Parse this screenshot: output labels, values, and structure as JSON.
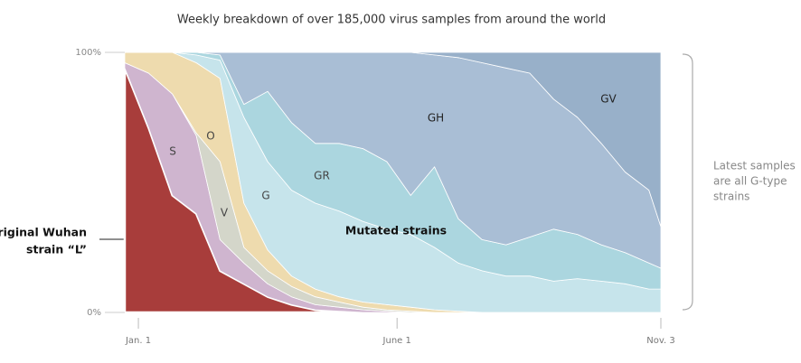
{
  "chart_data": {
    "type": "stacked-area",
    "title": "Weekly breakdown of over 185,000 virus samples from around the world",
    "x": [
      -8,
      6,
      20,
      34,
      48,
      62,
      76,
      90,
      104,
      118,
      132,
      146,
      160,
      174,
      188,
      202,
      216,
      230,
      244,
      258,
      272,
      286,
      300,
      307
    ],
    "xlim": [
      -8,
      307
    ],
    "xticks": [
      {
        "value": 0,
        "label": "Jan. 1"
      },
      {
        "value": 152,
        "label": "June 1"
      },
      {
        "value": 307,
        "label": "Nov. 3"
      }
    ],
    "ylim": [
      0,
      100
    ],
    "yticks": [
      {
        "value": 0,
        "label": "0%"
      },
      {
        "value": 100,
        "label": "100%"
      }
    ],
    "series": [
      {
        "color": "#a83d3b",
        "values": [
          94,
          71,
          45,
          38,
          16,
          11,
          6,
          3,
          1,
          0.5,
          0,
          0,
          0,
          0,
          0,
          0,
          0,
          0,
          0,
          0,
          0,
          0,
          0,
          0
        ]
      },
      {
        "name": "S",
        "color": "#cfb5cf",
        "values": [
          2,
          21,
          39,
          30,
          12,
          8,
          5,
          3,
          2,
          1.5,
          1,
          0.5,
          0,
          0,
          0,
          0,
          0,
          0,
          0,
          0,
          0,
          0,
          0,
          0
        ]
      },
      {
        "name": "V",
        "color": "#d4d6ca",
        "values": [
          0,
          0,
          0,
          1,
          30,
          6,
          5,
          4,
          3,
          2,
          1,
          0.5,
          0.5,
          0,
          0,
          0,
          0,
          0,
          0,
          0,
          0,
          0,
          0,
          0
        ]
      },
      {
        "name": "O",
        "color": "#eedbae",
        "values": [
          4,
          8,
          16,
          27,
          32,
          17,
          8,
          4,
          3,
          2,
          2,
          2,
          1.5,
          1,
          0.5,
          0,
          0,
          0,
          0,
          0,
          0,
          0,
          0,
          0
        ]
      },
      {
        "name": "G",
        "color": "#c6e4eb",
        "values": [
          0,
          0,
          0,
          3,
          7,
          33,
          34,
          33,
          33,
          33,
          31,
          29,
          28,
          24,
          18.5,
          16,
          14,
          14,
          12,
          13,
          12,
          11,
          9,
          9
        ]
      },
      {
        "name": "GR",
        "color": "#abd6df",
        "values": [
          0,
          0,
          0,
          1,
          2,
          5,
          27,
          26,
          23,
          26,
          28,
          26,
          15,
          31,
          17,
          12,
          12,
          15,
          20,
          17,
          14,
          12,
          10,
          8
        ]
      },
      {
        "name": "GH",
        "color": "#a9bed5",
        "values": [
          0,
          0,
          0,
          0,
          1,
          20,
          15,
          27,
          35,
          35,
          37,
          42,
          55,
          43,
          62,
          68,
          68,
          63,
          50,
          45,
          39,
          31,
          28,
          16
        ]
      },
      {
        "name": "GV",
        "color": "#98b0c9",
        "values": [
          0,
          0,
          0,
          0,
          0,
          0,
          0,
          0,
          0,
          0,
          0,
          0,
          0,
          1,
          2,
          4,
          6,
          8,
          18,
          25,
          35,
          46,
          53,
          67
        ]
      }
    ],
    "annotations": {
      "original": [
        "Original Wuhan",
        "strain “L”"
      ],
      "mutated": "Mutated strains",
      "latest": [
        "Latest samples",
        "are all G-type",
        "strains"
      ]
    }
  }
}
